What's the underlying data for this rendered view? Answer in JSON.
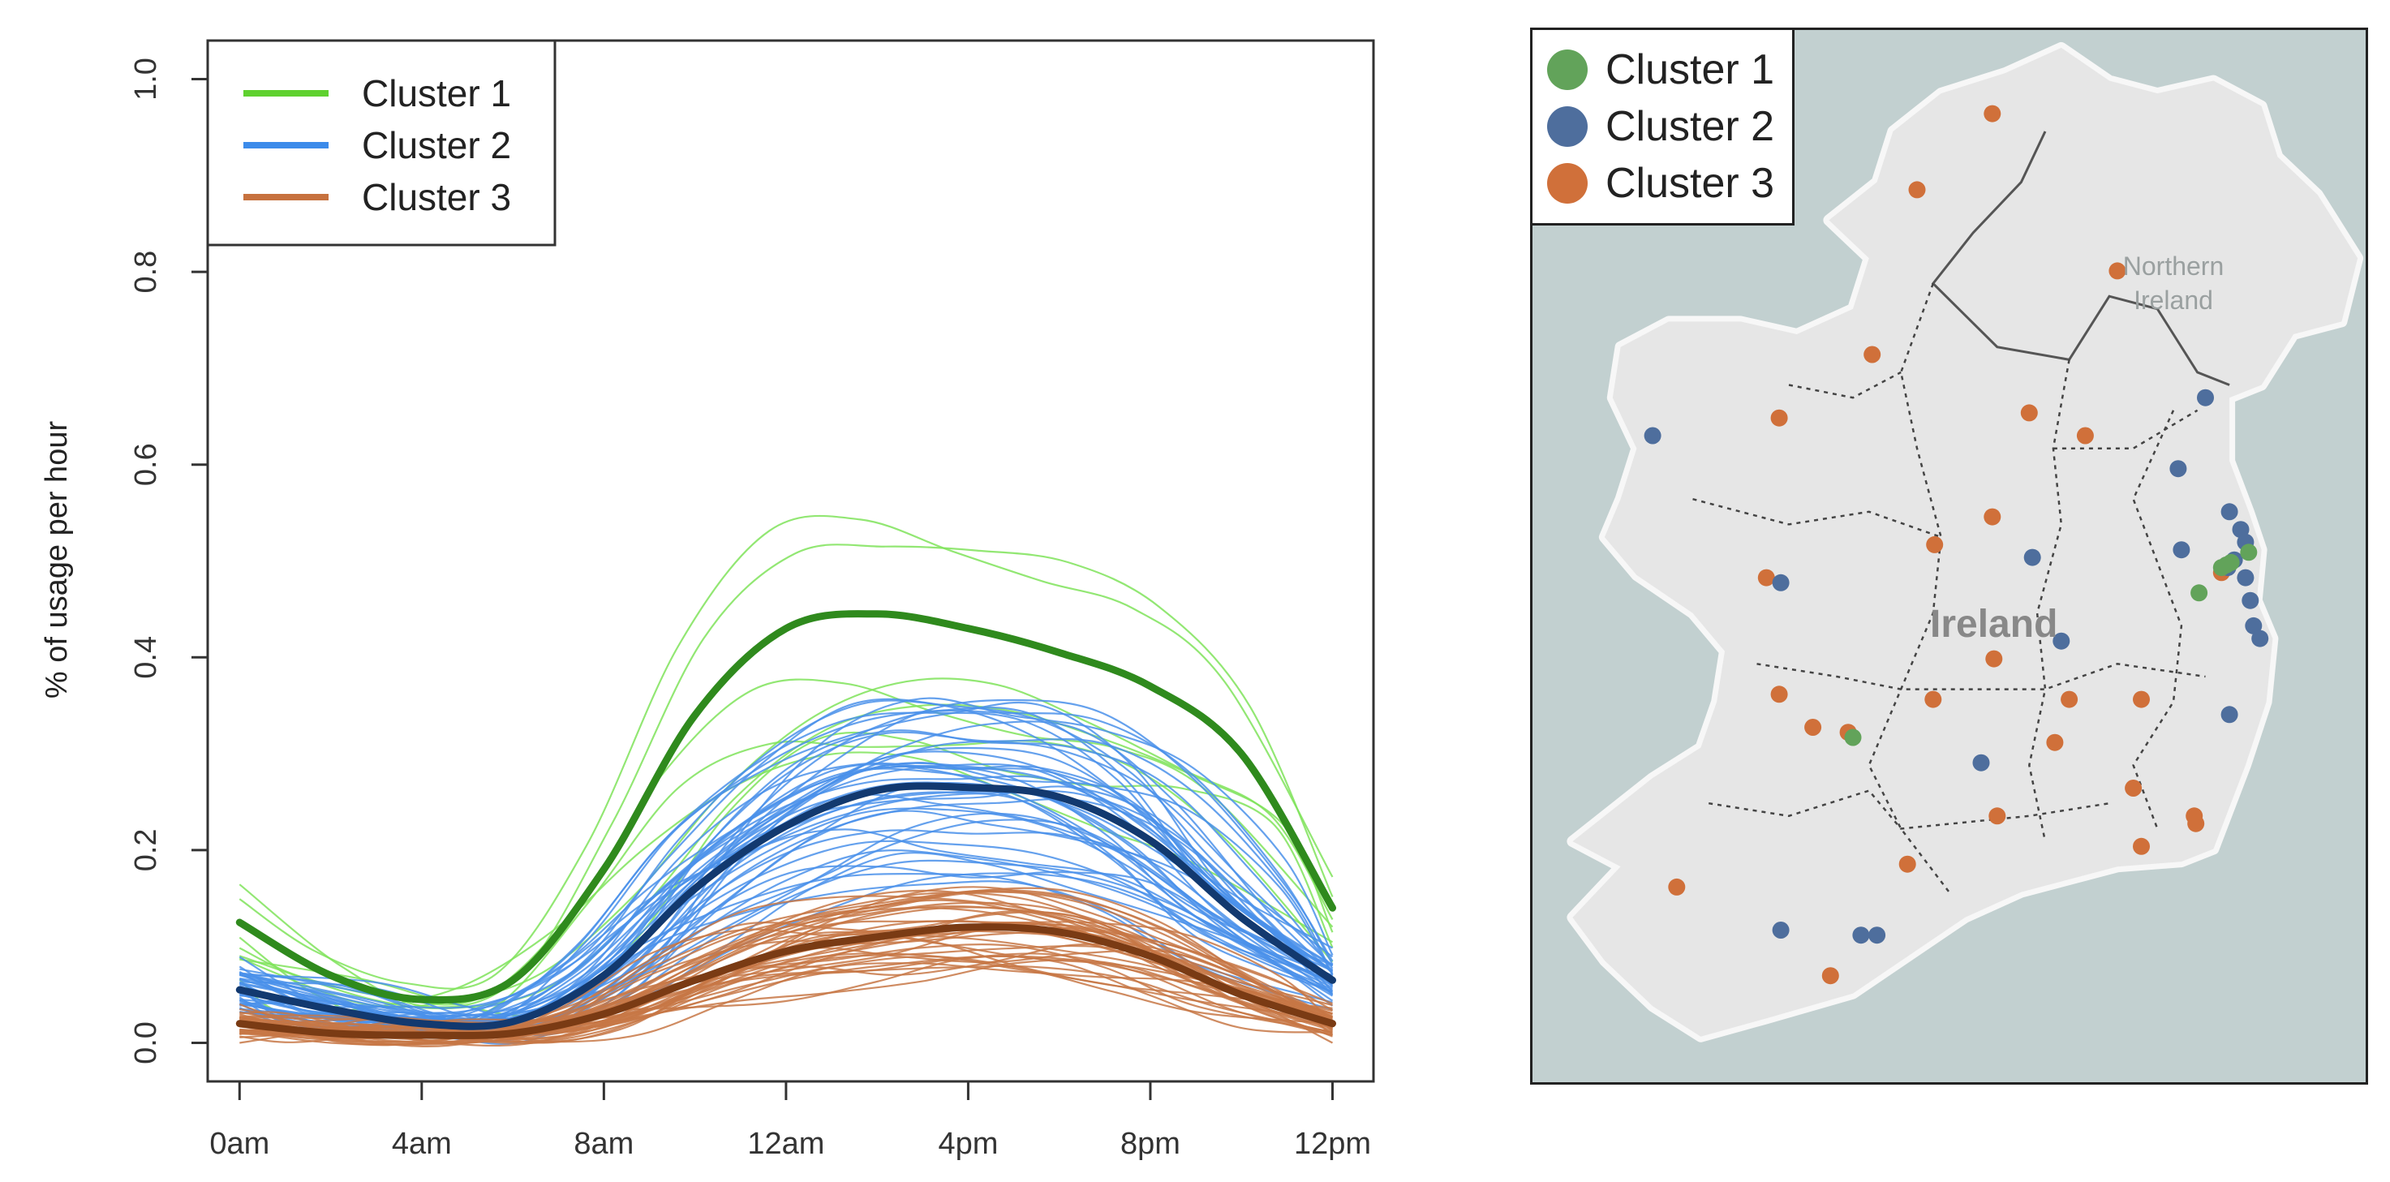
{
  "chart_data": [
    {
      "type": "line",
      "title": "",
      "xlabel": "",
      "ylabel": "% of usage per hour",
      "x_tick_labels": [
        "0am",
        "4am",
        "8am",
        "12am",
        "4pm",
        "8pm",
        "12pm"
      ],
      "x_tick_hours": [
        0,
        4,
        8,
        12,
        16,
        20,
        24
      ],
      "y_ticks": [
        "0.0",
        "0.2",
        "0.4",
        "0.6",
        "0.8",
        "1.0"
      ],
      "y_tick_values": [
        0,
        0.2,
        0.4,
        0.6,
        0.8,
        1.0
      ],
      "xlim": [
        -0.7,
        24.9
      ],
      "ylim": [
        -0.04,
        1.04
      ],
      "legend": {
        "placement": "top-left",
        "entries": [
          {
            "label": "Cluster 1",
            "color": "#5fd12f"
          },
          {
            "label": "Cluster 2",
            "color": "#3c8bea"
          },
          {
            "label": "Cluster 3",
            "color": "#c7713e"
          }
        ]
      },
      "series": [
        {
          "name": "Cluster 1",
          "role": "mean",
          "color": "#2f8a1d",
          "light_color": "#7fe35a",
          "x": [
            0,
            2,
            4,
            6,
            8,
            10,
            12,
            14,
            16,
            18,
            20,
            22,
            24
          ],
          "values": [
            0.125,
            0.07,
            0.045,
            0.065,
            0.18,
            0.34,
            0.43,
            0.445,
            0.43,
            0.405,
            0.37,
            0.3,
            0.14
          ],
          "member_count": 8
        },
        {
          "name": "Cluster 2",
          "role": "mean",
          "color": "#12396f",
          "light_color": "#4a90ea",
          "x": [
            0,
            2,
            4,
            6,
            8,
            10,
            12,
            14,
            16,
            18,
            20,
            22,
            24
          ],
          "values": [
            0.055,
            0.035,
            0.02,
            0.022,
            0.07,
            0.16,
            0.225,
            0.262,
            0.265,
            0.255,
            0.21,
            0.13,
            0.065
          ],
          "member_count": 45
        },
        {
          "name": "Cluster 3",
          "role": "mean",
          "color": "#7a3b14",
          "light_color": "#c77745",
          "x": [
            0,
            2,
            4,
            6,
            8,
            10,
            12,
            14,
            16,
            18,
            20,
            22,
            24
          ],
          "values": [
            0.02,
            0.01,
            0.008,
            0.01,
            0.03,
            0.065,
            0.095,
            0.11,
            0.12,
            0.115,
            0.09,
            0.05,
            0.02
          ],
          "member_count": 40
        }
      ]
    },
    {
      "type": "scatter",
      "title": "",
      "map_labels": {
        "region": "Northern\nIreland",
        "country": "Ireland"
      },
      "legend": {
        "placement": "top-left",
        "entries": [
          {
            "label": "Cluster 1",
            "color": "#62a35a"
          },
          {
            "label": "Cluster 2",
            "color": "#4e6e9d"
          },
          {
            "label": "Cluster 3",
            "color": "#d0703a"
          }
        ]
      },
      "lon_range": [
        -10.6,
        -5.4
      ],
      "lat_range": [
        51.3,
        55.45
      ],
      "points": [
        {
          "cluster": 1,
          "lon": -6.27,
          "lat": 53.34
        },
        {
          "cluster": 1,
          "lon": -6.24,
          "lat": 53.35
        },
        {
          "cluster": 1,
          "lon": -6.13,
          "lat": 53.39
        },
        {
          "cluster": 1,
          "lon": -6.44,
          "lat": 53.23
        },
        {
          "cluster": 1,
          "lon": -8.6,
          "lat": 52.66
        },
        {
          "cluster": 1,
          "lon": -6.3,
          "lat": 53.33
        },
        {
          "cluster": 2,
          "lon": -9.85,
          "lat": 53.85
        },
        {
          "cluster": 2,
          "lon": -6.4,
          "lat": 54.0
        },
        {
          "cluster": 2,
          "lon": -6.57,
          "lat": 53.72
        },
        {
          "cluster": 2,
          "lon": -6.25,
          "lat": 53.55
        },
        {
          "cluster": 2,
          "lon": -6.18,
          "lat": 53.48
        },
        {
          "cluster": 2,
          "lon": -6.15,
          "lat": 53.43
        },
        {
          "cluster": 2,
          "lon": -6.22,
          "lat": 53.36
        },
        {
          "cluster": 2,
          "lon": -6.26,
          "lat": 53.33
        },
        {
          "cluster": 2,
          "lon": -6.15,
          "lat": 53.29
        },
        {
          "cluster": 2,
          "lon": -6.12,
          "lat": 53.2
        },
        {
          "cluster": 2,
          "lon": -6.1,
          "lat": 53.1
        },
        {
          "cluster": 2,
          "lon": -6.06,
          "lat": 53.05
        },
        {
          "cluster": 2,
          "lon": -6.55,
          "lat": 53.4
        },
        {
          "cluster": 2,
          "lon": -7.48,
          "lat": 53.37
        },
        {
          "cluster": 2,
          "lon": -9.05,
          "lat": 53.27
        },
        {
          "cluster": 2,
          "lon": -7.3,
          "lat": 53.04
        },
        {
          "cluster": 2,
          "lon": -6.25,
          "lat": 52.75
        },
        {
          "cluster": 2,
          "lon": -7.8,
          "lat": 52.56
        },
        {
          "cluster": 2,
          "lon": -9.05,
          "lat": 51.9
        },
        {
          "cluster": 2,
          "lon": -8.55,
          "lat": 51.88
        },
        {
          "cluster": 2,
          "lon": -8.45,
          "lat": 51.88
        },
        {
          "cluster": 3,
          "lon": -7.73,
          "lat": 55.12
        },
        {
          "cluster": 3,
          "lon": -8.2,
          "lat": 54.82
        },
        {
          "cluster": 3,
          "lon": -6.95,
          "lat": 54.5
        },
        {
          "cluster": 3,
          "lon": -8.48,
          "lat": 54.17
        },
        {
          "cluster": 3,
          "lon": -9.06,
          "lat": 53.92
        },
        {
          "cluster": 3,
          "lon": -7.5,
          "lat": 53.94
        },
        {
          "cluster": 3,
          "lon": -7.15,
          "lat": 53.85
        },
        {
          "cluster": 3,
          "lon": -7.73,
          "lat": 53.53
        },
        {
          "cluster": 3,
          "lon": -8.09,
          "lat": 53.42
        },
        {
          "cluster": 3,
          "lon": -9.14,
          "lat": 53.29
        },
        {
          "cluster": 3,
          "lon": -6.3,
          "lat": 53.31
        },
        {
          "cluster": 3,
          "lon": -7.72,
          "lat": 52.97
        },
        {
          "cluster": 3,
          "lon": -8.1,
          "lat": 52.81
        },
        {
          "cluster": 3,
          "lon": -7.25,
          "lat": 52.81
        },
        {
          "cluster": 3,
          "lon": -6.8,
          "lat": 52.81
        },
        {
          "cluster": 3,
          "lon": -9.06,
          "lat": 52.83
        },
        {
          "cluster": 3,
          "lon": -8.85,
          "lat": 52.7
        },
        {
          "cluster": 3,
          "lon": -8.63,
          "lat": 52.68
        },
        {
          "cluster": 3,
          "lon": -7.34,
          "lat": 52.64
        },
        {
          "cluster": 3,
          "lon": -6.85,
          "lat": 52.46
        },
        {
          "cluster": 3,
          "lon": -7.7,
          "lat": 52.35
        },
        {
          "cluster": 3,
          "lon": -6.8,
          "lat": 52.23
        },
        {
          "cluster": 3,
          "lon": -8.26,
          "lat": 52.16
        },
        {
          "cluster": 3,
          "lon": -9.7,
          "lat": 52.07
        },
        {
          "cluster": 3,
          "lon": -6.47,
          "lat": 52.35
        },
        {
          "cluster": 3,
          "lon": -6.46,
          "lat": 52.32
        },
        {
          "cluster": 3,
          "lon": -8.74,
          "lat": 51.72
        }
      ]
    }
  ]
}
